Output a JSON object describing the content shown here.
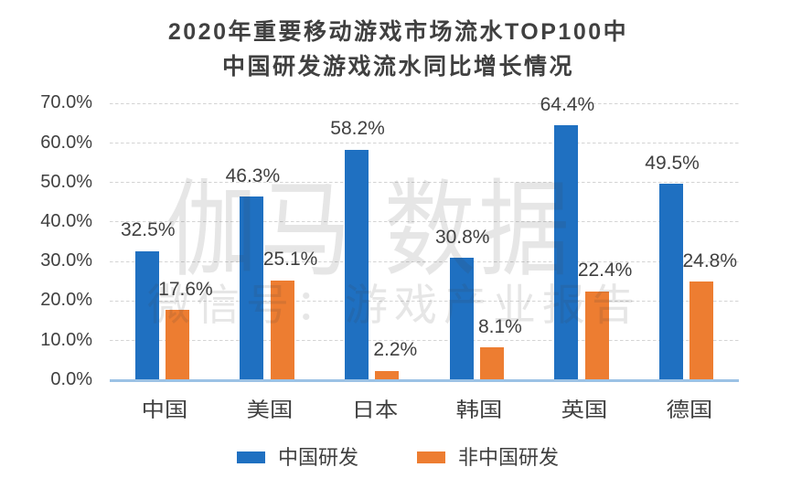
{
  "chart_data": {
    "type": "bar",
    "title_lines": [
      "2020年重要移动游戏市场流水TOP100中",
      "中国研发游戏流水同比增长情况"
    ],
    "categories": [
      "中国",
      "美国",
      "日本",
      "韩国",
      "英国",
      "德国"
    ],
    "series": [
      {
        "name": "中国研发",
        "color": "#1f70c1",
        "values": [
          32.5,
          46.3,
          58.2,
          30.8,
          64.4,
          49.5
        ]
      },
      {
        "name": "非中国研发",
        "color": "#ed7d31",
        "values": [
          17.6,
          25.1,
          2.2,
          8.1,
          22.4,
          24.8
        ]
      }
    ],
    "data_label_suffix": "%",
    "y_axis": {
      "tick_labels": [
        "0.0%",
        "10.0%",
        "20.0%",
        "30.0%",
        "40.0%",
        "50.0%",
        "60.0%",
        "70.0%"
      ],
      "min": 0,
      "max": 70,
      "step": 10
    },
    "grid": "horizontal-dashed",
    "legend_position": "bottom",
    "colors": {
      "series1": "#1f70c1",
      "series2": "#ed7d31",
      "axis_line": "#9cc2e5",
      "gridline": "#d4d4d4",
      "text": "#404040"
    }
  },
  "watermark": {
    "line1_part1": "伽马",
    "line1_part2": "数据",
    "line2": "微信号：游戏产业报告"
  }
}
